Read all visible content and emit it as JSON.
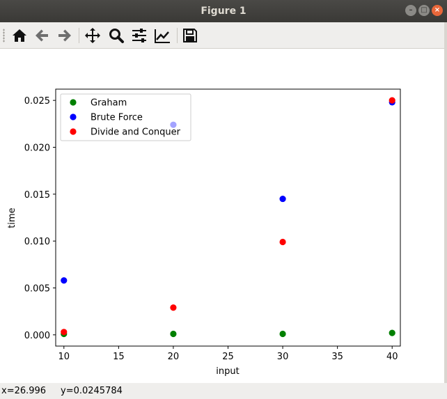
{
  "window": {
    "title": "Figure 1"
  },
  "toolbar": {
    "buttons": [
      "home-icon",
      "back-icon",
      "forward-icon",
      "pan-icon",
      "zoom-icon",
      "configure-subplots-icon",
      "edit-axis-icon",
      "save-icon"
    ]
  },
  "status": {
    "x_readout": "x=26.996",
    "y_readout": "y=0.0245784"
  },
  "chart_data": {
    "type": "scatter",
    "xlabel": "input",
    "ylabel": "time",
    "xlim": [
      9.25,
      40.75
    ],
    "ylim": [
      -0.0012,
      0.0262
    ],
    "xticks": [
      10,
      15,
      20,
      25,
      30,
      35,
      40
    ],
    "yticks": [
      0.0,
      0.005,
      0.01,
      0.015,
      0.02,
      0.025
    ],
    "ytick_labels": [
      "0.000",
      "0.005",
      "0.010",
      "0.015",
      "0.020",
      "0.025"
    ],
    "legend_position": "upper left",
    "grid": false,
    "series": [
      {
        "name": "Graham",
        "color": "#008000",
        "x": [
          10,
          20,
          30,
          40
        ],
        "y": [
          0.0001,
          0.0001,
          0.0001,
          0.0002
        ]
      },
      {
        "name": "Brute Force",
        "color": "#0000ff",
        "x": [
          10,
          20,
          30,
          40
        ],
        "y": [
          0.0058,
          0.0224,
          0.0145,
          0.0248
        ]
      },
      {
        "name": "Divide and Conquer",
        "color": "#ff0000",
        "x": [
          10,
          20,
          30,
          40
        ],
        "y": [
          0.0003,
          0.0029,
          0.0099,
          0.025
        ]
      }
    ],
    "faded_points": [
      {
        "series": "Brute Force",
        "x": 20,
        "y": 0.0224
      }
    ]
  }
}
